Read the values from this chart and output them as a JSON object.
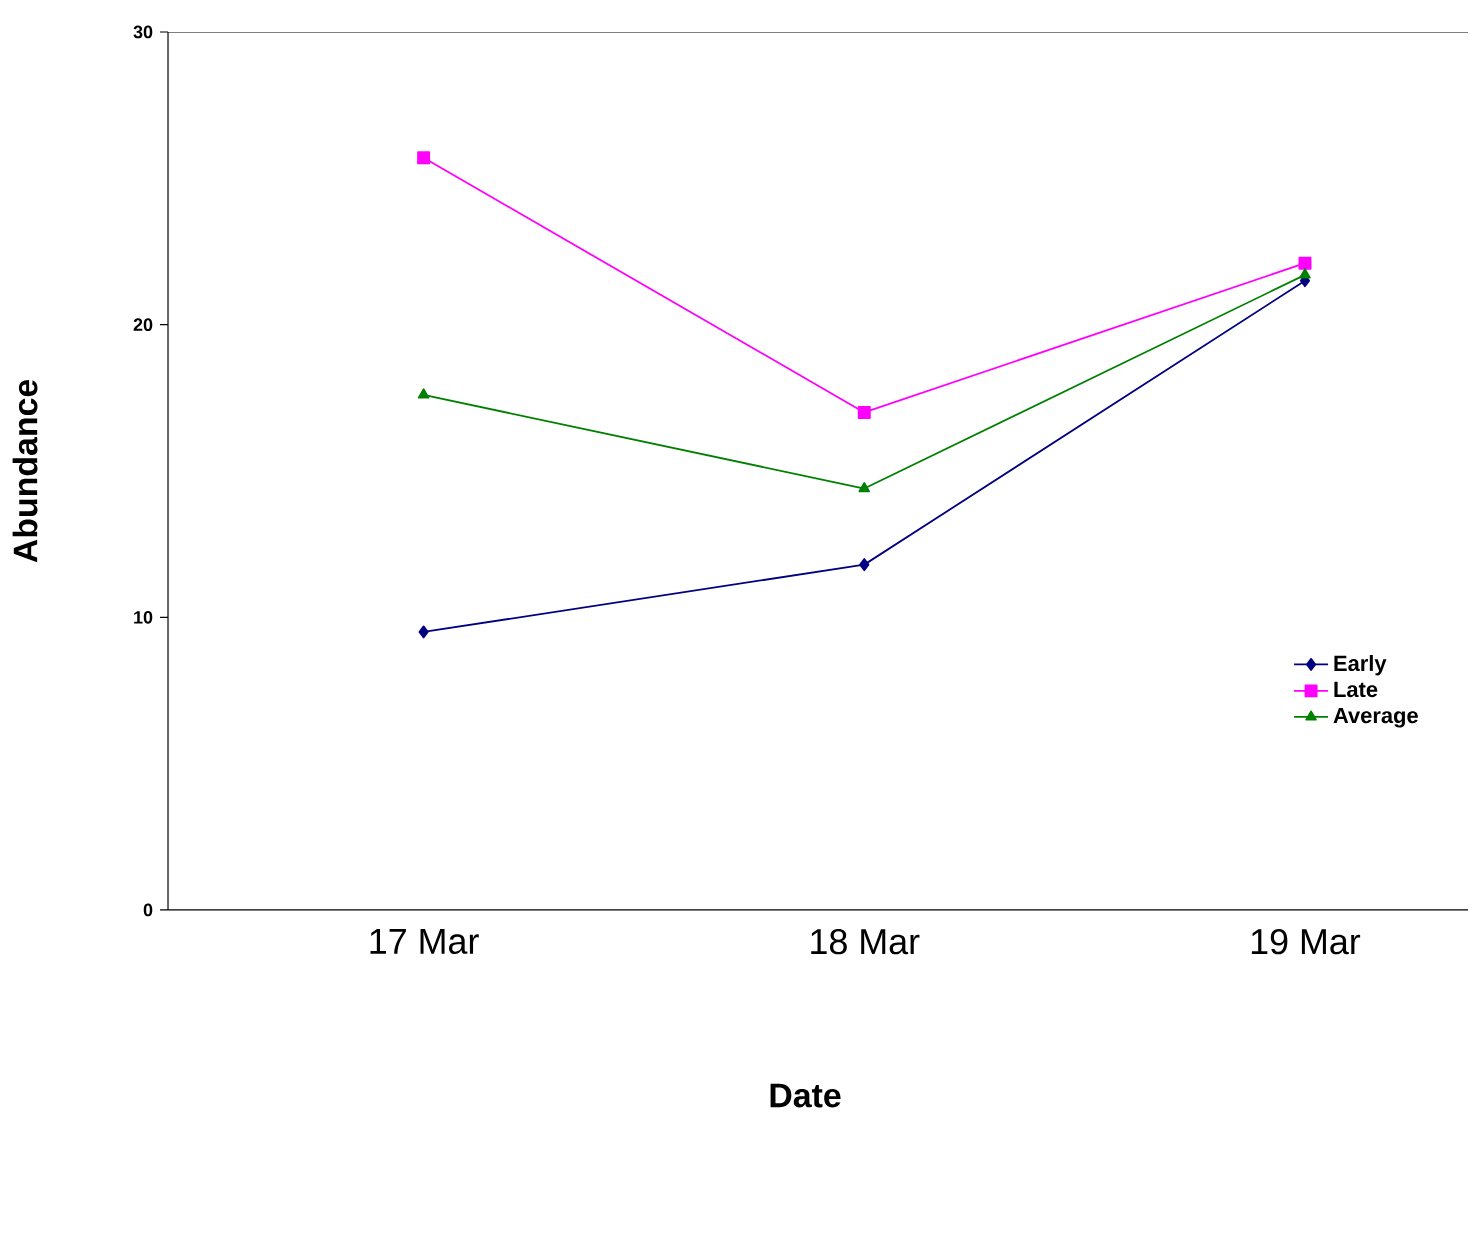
{
  "chart_data": {
    "type": "line",
    "xlabel": "Date",
    "ylabel": "Abundance",
    "categories": [
      "17 Mar",
      "18 Mar",
      "19 Mar"
    ],
    "series": [
      {
        "name": "Early",
        "color": "#000080",
        "marker": "diamond",
        "values": [
          9.5,
          11.8,
          21.5
        ]
      },
      {
        "name": "Late",
        "color": "#ff00ff",
        "marker": "square",
        "values": [
          25.7,
          17.0,
          22.1
        ]
      },
      {
        "name": "Average",
        "color": "#008000",
        "marker": "triangle",
        "values": [
          17.6,
          14.4,
          21.7
        ]
      }
    ],
    "ylim": [
      0,
      30
    ],
    "yticks": [
      0,
      10,
      20,
      30
    ],
    "grid": false,
    "legend": "right",
    "line_style": "solid"
  }
}
